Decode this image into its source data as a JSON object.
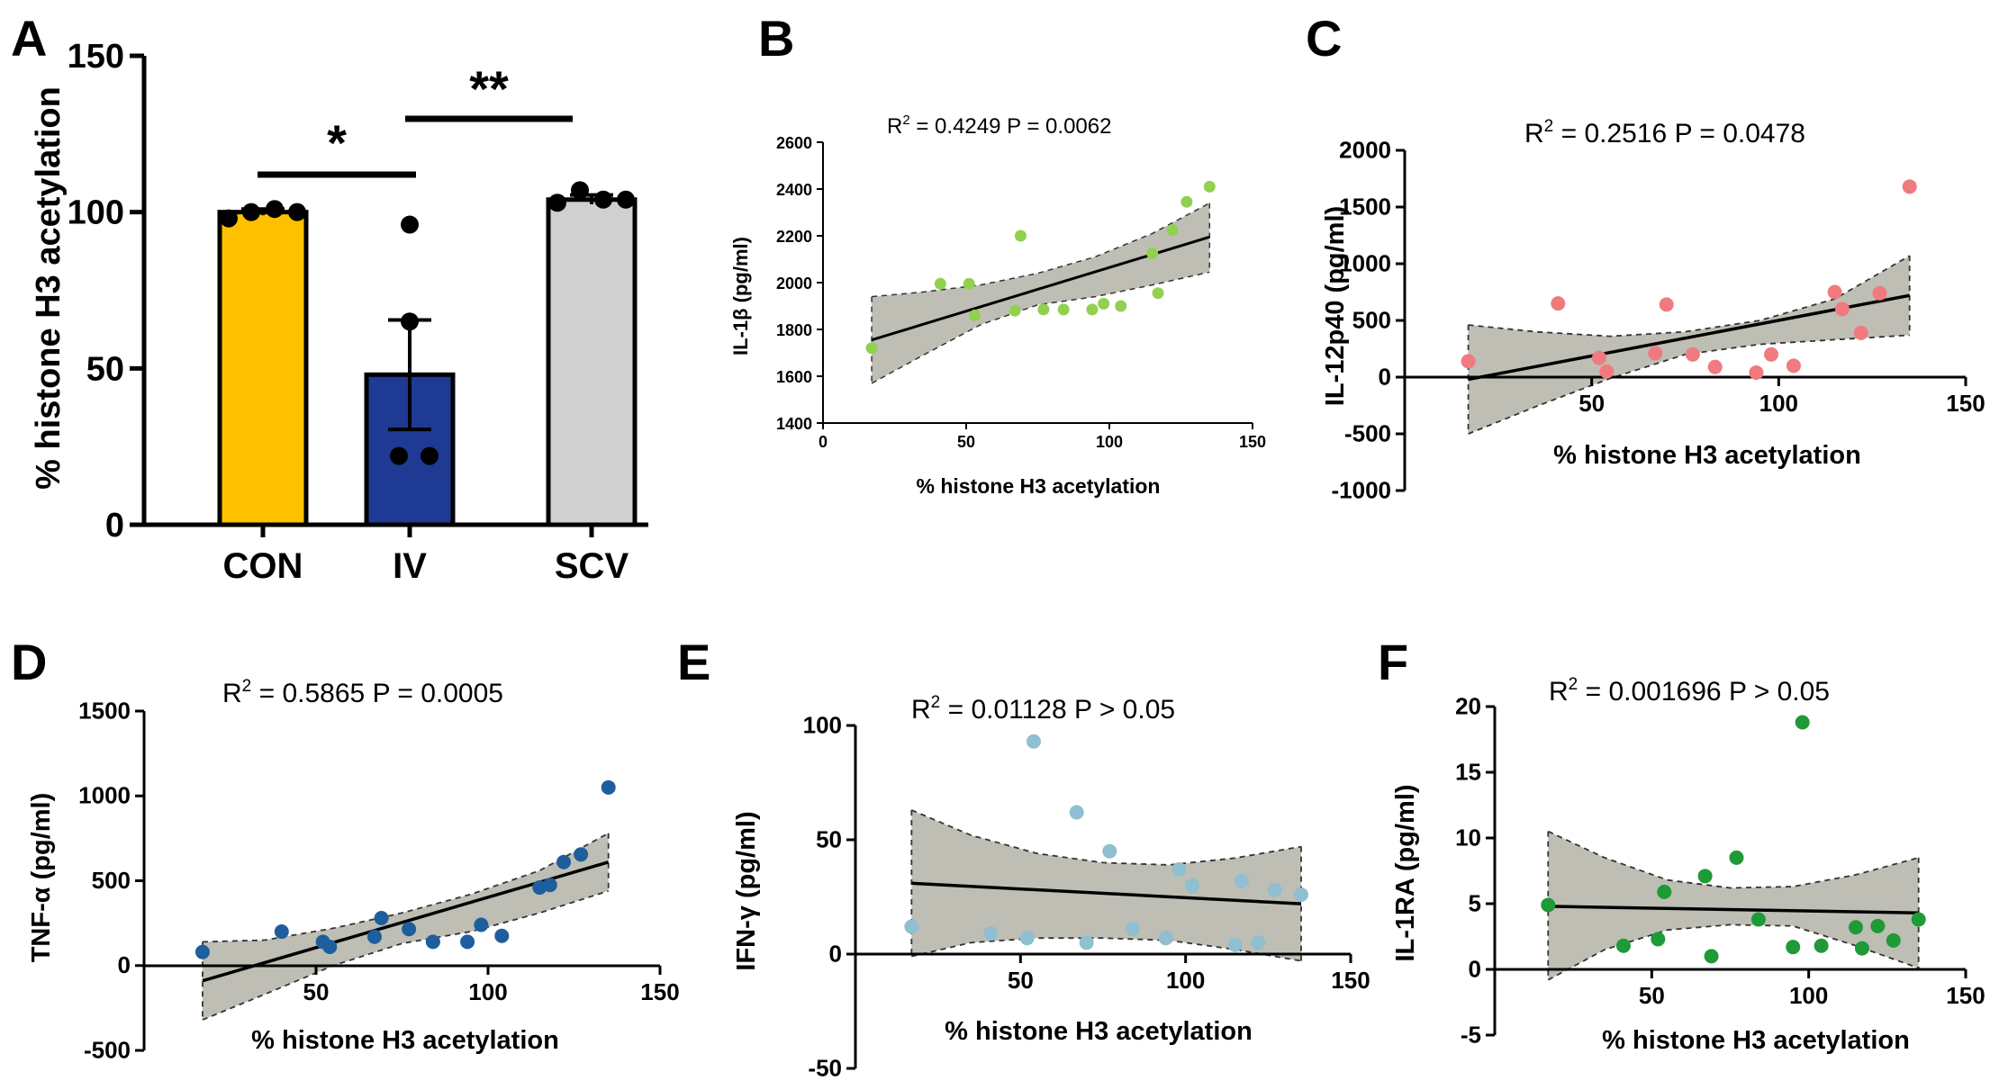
{
  "colors": {
    "con": "#FFC000",
    "iv": "#1F3A93",
    "scv": "#D0D0D0",
    "b": "#92D050",
    "c": "#F07A80",
    "d": "#1F5E9C",
    "e": "#8FBFD0",
    "f": "#1E9A37",
    "band": "#BEBEB5",
    "line": "#000000"
  },
  "chart_data": [
    {
      "panel": "A",
      "type": "bar",
      "title": "",
      "ylabel": "% histone H3 acetylation",
      "xlabel": "",
      "ylim": [
        0,
        150
      ],
      "yticks": [
        0,
        50,
        100,
        150
      ],
      "categories": [
        "CON",
        "IV",
        "SCV"
      ],
      "values": [
        100,
        48,
        104
      ],
      "errors": [
        1,
        17.5,
        1.5
      ],
      "points": [
        [
          98,
          100,
          101,
          100
        ],
        [
          96,
          65,
          22,
          22
        ],
        [
          103,
          107,
          104,
          104
        ]
      ],
      "significance": [
        {
          "from": "CON",
          "to": "IV",
          "label": "*"
        },
        {
          "from": "IV",
          "to": "SCV",
          "label": "**"
        }
      ]
    },
    {
      "panel": "B",
      "type": "scatter",
      "ylabel": "IL-1β (pg/ml)",
      "xlabel": "% histone H3 acetylation",
      "stats": {
        "r2": "0.4249",
        "p": "P = 0.0062"
      },
      "xlim": [
        0,
        150
      ],
      "ylim": [
        1400,
        2600
      ],
      "xticks": [
        0,
        50,
        100,
        150
      ],
      "yticks": [
        1400,
        1600,
        1800,
        2000,
        2200,
        2400,
        2600
      ],
      "x": [
        17,
        41,
        51,
        53,
        67,
        69,
        77,
        84,
        94,
        98,
        104,
        115,
        117,
        122,
        127,
        135
      ],
      "y": [
        1720,
        1995,
        1995,
        1860,
        1880,
        2200,
        1885,
        1885,
        1885,
        1910,
        1900,
        2125,
        1955,
        2225,
        2345,
        2410
      ],
      "fit": {
        "x0": 17,
        "y0": 1755,
        "x1": 135,
        "y1": 2195
      },
      "band": {
        "x": [
          17,
          35,
          55,
          75,
          95,
          115,
          135
        ],
        "upper": [
          1940,
          1960,
          1990,
          2040,
          2110,
          2210,
          2340
        ],
        "lower": [
          1570,
          1690,
          1820,
          1905,
          1940,
          1990,
          2045
        ]
      }
    },
    {
      "panel": "C",
      "type": "scatter",
      "ylabel": "IL-12p40 (pg/ml)",
      "xlabel": "% histone H3 acetylation",
      "stats": {
        "r2": "0.2516",
        "p": "P = 0.0478"
      },
      "xlim": [
        0,
        150
      ],
      "ylim": [
        -1000,
        2000
      ],
      "xticks": [
        50,
        100,
        150
      ],
      "yticks": [
        -1000,
        -500,
        0,
        500,
        1000,
        1500,
        2000
      ],
      "x": [
        17,
        41,
        52,
        54,
        67,
        70,
        77,
        83,
        94,
        98,
        104,
        115,
        117,
        122,
        127,
        135
      ],
      "y": [
        140,
        650,
        170,
        50,
        210,
        640,
        200,
        90,
        40,
        200,
        100,
        750,
        600,
        390,
        740,
        1680
      ],
      "fit": {
        "x0": 17,
        "y0": -20,
        "x1": 135,
        "y1": 720
      },
      "band": {
        "x": [
          17,
          35,
          55,
          75,
          95,
          115,
          135
        ],
        "upper": [
          460,
          400,
          360,
          400,
          500,
          690,
          1070
        ],
        "lower": [
          -500,
          -260,
          -10,
          200,
          290,
          330,
          370
        ]
      }
    },
    {
      "panel": "D",
      "type": "scatter",
      "ylabel": "TNF-α (pg/ml)",
      "xlabel": "% histone H3 acetylation",
      "stats": {
        "r2": "0.5865",
        "p": "P = 0.0005"
      },
      "xlim": [
        0,
        150
      ],
      "ylim": [
        -500,
        1500
      ],
      "xticks": [
        50,
        100,
        150
      ],
      "yticks": [
        -500,
        0,
        500,
        1000,
        1500
      ],
      "x": [
        17,
        40,
        52,
        54,
        67,
        69,
        77,
        84,
        94,
        98,
        104,
        115,
        118,
        122,
        127,
        135
      ],
      "y": [
        80,
        200,
        140,
        110,
        170,
        280,
        215,
        140,
        140,
        240,
        175,
        460,
        475,
        610,
        655,
        1050
      ],
      "fit": {
        "x0": 17,
        "y0": -90,
        "x1": 135,
        "y1": 610
      },
      "band": {
        "x": [
          17,
          35,
          55,
          75,
          95,
          115,
          135
        ],
        "upper": [
          140,
          150,
          220,
          310,
          420,
          560,
          780
        ],
        "lower": [
          -320,
          -170,
          0,
          130,
          200,
          310,
          440
        ]
      }
    },
    {
      "panel": "E",
      "type": "scatter",
      "ylabel": "IFN-γ (pg/ml)",
      "xlabel": "% histone H3 acetylation",
      "stats": {
        "r2": "0.01128",
        "p": "P > 0.05"
      },
      "xlim": [
        0,
        150
      ],
      "ylim": [
        -50,
        100
      ],
      "xticks": [
        50,
        100,
        150
      ],
      "yticks": [
        -50,
        0,
        50,
        100
      ],
      "x": [
        17,
        41,
        52,
        54,
        67,
        70,
        77,
        84,
        94,
        98,
        102,
        115,
        117,
        122,
        127,
        135
      ],
      "y": [
        12,
        9,
        7,
        93,
        62,
        5,
        45,
        11,
        7,
        37,
        30,
        4,
        32,
        5,
        28,
        26
      ],
      "fit": {
        "x0": 17,
        "y0": 31,
        "x1": 135,
        "y1": 22
      },
      "band": {
        "x": [
          17,
          35,
          55,
          75,
          95,
          115,
          135
        ],
        "upper": [
          63,
          52,
          44,
          40,
          39,
          42,
          47
        ],
        "lower": [
          -1,
          5,
          7,
          7,
          6,
          2,
          -3
        ]
      }
    },
    {
      "panel": "F",
      "type": "scatter",
      "ylabel": "IL-1RA (pg/ml)",
      "xlabel": "% histone H3 acetylation",
      "stats": {
        "r2": "0.001696",
        "p": "P > 0.05"
      },
      "xlim": [
        0,
        150
      ],
      "ylim": [
        -5,
        20
      ],
      "xticks": [
        50,
        100,
        150
      ],
      "yticks": [
        -5,
        0,
        5,
        10,
        15,
        20
      ],
      "x": [
        17,
        41,
        52,
        54,
        67,
        69,
        77,
        84,
        95,
        98,
        104,
        115,
        117,
        122,
        127,
        135
      ],
      "y": [
        4.9,
        1.8,
        2.3,
        5.9,
        7.1,
        1.0,
        8.5,
        3.8,
        1.7,
        18.8,
        1.8,
        3.2,
        1.6,
        3.3,
        2.2,
        3.8
      ],
      "fit": {
        "x0": 17,
        "y0": 4.8,
        "x1": 135,
        "y1": 4.3
      },
      "band": {
        "x": [
          17,
          35,
          55,
          75,
          95,
          115,
          135
        ],
        "upper": [
          10.5,
          8.5,
          6.8,
          6.2,
          6.3,
          7.2,
          8.5
        ],
        "lower": [
          -0.8,
          1.5,
          3.0,
          3.4,
          3.3,
          1.8,
          0.1
        ]
      }
    }
  ]
}
